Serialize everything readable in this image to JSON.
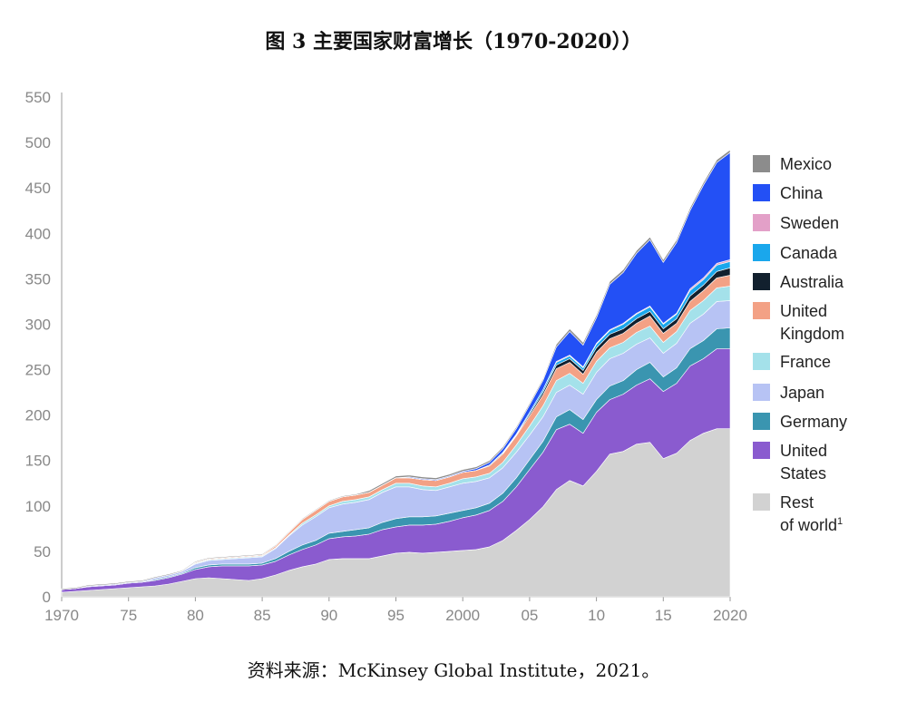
{
  "title": "图 3 主要国家财富增长（1970-2020））",
  "source": "资料来源：McKinsey Global Institute，2021。",
  "chart_data": {
    "type": "area",
    "stacked": true,
    "x_tick_labels": [
      "1970",
      "75",
      "80",
      "85",
      "90",
      "95",
      "2000",
      "05",
      "10",
      "15",
      "2020"
    ],
    "x_tick_values": [
      1970,
      1975,
      1980,
      1985,
      1990,
      1995,
      2000,
      2005,
      2010,
      2015,
      2020
    ],
    "y_ticks": [
      0,
      50,
      100,
      150,
      200,
      250,
      300,
      350,
      400,
      450,
      500,
      550
    ],
    "ylim": [
      0,
      550
    ],
    "xlim": [
      1970,
      2020
    ],
    "legend_position": "right",
    "x": [
      1970,
      1971,
      1972,
      1973,
      1974,
      1975,
      1976,
      1977,
      1978,
      1979,
      1980,
      1981,
      1982,
      1983,
      1984,
      1985,
      1986,
      1987,
      1988,
      1989,
      1990,
      1991,
      1992,
      1993,
      1994,
      1995,
      1996,
      1997,
      1998,
      1999,
      2000,
      2001,
      2002,
      2003,
      2004,
      2005,
      2006,
      2007,
      2008,
      2009,
      2010,
      2011,
      2012,
      2013,
      2014,
      2015,
      2016,
      2017,
      2018,
      2019,
      2020
    ],
    "series": [
      {
        "name": "Rest of world",
        "superscript": "1",
        "color": "#d2d2d2",
        "values": [
          5,
          6,
          7,
          8,
          9,
          10,
          11,
          12,
          14,
          17,
          20,
          21,
          20,
          19,
          18,
          20,
          24,
          29,
          33,
          36,
          41,
          42,
          42,
          42,
          45,
          48,
          49,
          48,
          49,
          50,
          51,
          52,
          55,
          62,
          73,
          85,
          99,
          118,
          128,
          122,
          138,
          157,
          160,
          168,
          170,
          152,
          158,
          172,
          180,
          185,
          185
        ]
      },
      {
        "name": "United States",
        "color": "#8a5bcf",
        "values": [
          3,
          3,
          4,
          4,
          4,
          5,
          5,
          6,
          7,
          8,
          10,
          12,
          14,
          15,
          16,
          15,
          15,
          17,
          19,
          21,
          23,
          24,
          25,
          27,
          29,
          29,
          30,
          31,
          31,
          33,
          36,
          38,
          40,
          43,
          48,
          55,
          60,
          66,
          62,
          58,
          65,
          60,
          63,
          65,
          70,
          74,
          77,
          82,
          82,
          88,
          88
        ]
      },
      {
        "name": "Germany",
        "color": "#3a95b0",
        "values": [
          0,
          0,
          0,
          0,
          0,
          0,
          0,
          1,
          1,
          1,
          2,
          2,
          2,
          2,
          2,
          2,
          3,
          4,
          5,
          5,
          6,
          6,
          7,
          7,
          8,
          9,
          9,
          9,
          9,
          9,
          8,
          8,
          8,
          9,
          10,
          11,
          12,
          14,
          16,
          15,
          14,
          15,
          15,
          17,
          18,
          16,
          17,
          19,
          20,
          22,
          23
        ]
      },
      {
        "name": "Japan",
        "color": "#b7c3f4",
        "values": [
          0,
          0,
          1,
          1,
          1,
          1,
          1,
          2,
          2,
          2,
          4,
          5,
          5,
          6,
          7,
          7,
          11,
          17,
          22,
          26,
          28,
          30,
          30,
          31,
          33,
          35,
          33,
          30,
          28,
          29,
          30,
          29,
          28,
          28,
          28,
          27,
          27,
          27,
          27,
          28,
          30,
          30,
          30,
          28,
          27,
          26,
          27,
          28,
          29,
          30,
          30
        ]
      },
      {
        "name": "France",
        "color": "#a4e1ea",
        "values": [
          0,
          0,
          0,
          0,
          0,
          0,
          0,
          0,
          0,
          0,
          1,
          1,
          1,
          1,
          1,
          1,
          1,
          1,
          2,
          2,
          2,
          3,
          3,
          3,
          3,
          4,
          4,
          4,
          4,
          4,
          5,
          5,
          5,
          6,
          8,
          10,
          12,
          13,
          13,
          12,
          12,
          12,
          12,
          13,
          13,
          12,
          13,
          14,
          15,
          15,
          16
        ]
      },
      {
        "name": "United Kingdom",
        "color": "#f3a185",
        "values": [
          0,
          0,
          0,
          0,
          0,
          0,
          0,
          0,
          0,
          0,
          1,
          1,
          1,
          1,
          1,
          1,
          2,
          3,
          4,
          5,
          5,
          5,
          5,
          5,
          5,
          6,
          6,
          7,
          7,
          7,
          7,
          7,
          8,
          9,
          10,
          11,
          12,
          13,
          12,
          10,
          10,
          10,
          10,
          10,
          11,
          10,
          9,
          10,
          11,
          11,
          12
        ]
      },
      {
        "name": "Australia",
        "color": "#12202e",
        "values": [
          0,
          0,
          0,
          0,
          0,
          0,
          0,
          0,
          0,
          0,
          0,
          0,
          0,
          0,
          0,
          0,
          0,
          0,
          0,
          0,
          0,
          0,
          0,
          0,
          0,
          0,
          0,
          0,
          0,
          0,
          0,
          0,
          1,
          1,
          1,
          2,
          3,
          4,
          4,
          4,
          5,
          5,
          5,
          5,
          5,
          5,
          5,
          6,
          6,
          7,
          8
        ]
      },
      {
        "name": "Canada",
        "color": "#1aa7ec",
        "values": [
          0,
          0,
          0,
          0,
          0,
          0,
          0,
          0,
          0,
          0,
          0,
          0,
          0,
          0,
          0,
          0,
          0,
          0,
          0,
          0,
          0,
          0,
          0,
          0,
          0,
          0,
          0,
          0,
          0,
          0,
          0,
          0,
          0,
          1,
          1,
          2,
          3,
          3,
          3,
          3,
          4,
          4,
          5,
          5,
          5,
          5,
          5,
          6,
          6,
          7,
          7
        ]
      },
      {
        "name": "Sweden",
        "color": "#e3a0c8",
        "values": [
          0,
          0,
          0,
          0,
          0,
          0,
          0,
          0,
          0,
          0,
          0,
          0,
          0,
          0,
          0,
          0,
          0,
          0,
          0,
          0,
          0,
          0,
          0,
          0,
          0,
          0,
          0,
          0,
          0,
          0,
          0,
          0,
          0,
          0,
          0,
          0,
          0,
          1,
          1,
          1,
          1,
          1,
          1,
          1,
          1,
          1,
          1,
          2,
          2,
          2,
          2
        ]
      },
      {
        "name": "China",
        "color": "#2350f5",
        "values": [
          0,
          0,
          0,
          0,
          0,
          0,
          0,
          0,
          0,
          0,
          0,
          0,
          0,
          0,
          0,
          0,
          0,
          0,
          0,
          0,
          0,
          0,
          0,
          0,
          0,
          0,
          1,
          1,
          1,
          1,
          1,
          2,
          3,
          4,
          6,
          8,
          10,
          16,
          26,
          24,
          28,
          50,
          56,
          66,
          73,
          67,
          78,
          86,
          102,
          111,
          118
        ]
      },
      {
        "name": "Mexico",
        "color": "#8c8c8c",
        "values": [
          1,
          1,
          1,
          1,
          1,
          1,
          1,
          1,
          1,
          1,
          1,
          1,
          1,
          1,
          1,
          1,
          1,
          1,
          1,
          1,
          1,
          1,
          1,
          2,
          2,
          2,
          2,
          2,
          2,
          2,
          2,
          2,
          2,
          2,
          2,
          2,
          2,
          3,
          3,
          3,
          3,
          3,
          3,
          3,
          3,
          3,
          3,
          3,
          3,
          3,
          3
        ]
      }
    ]
  }
}
